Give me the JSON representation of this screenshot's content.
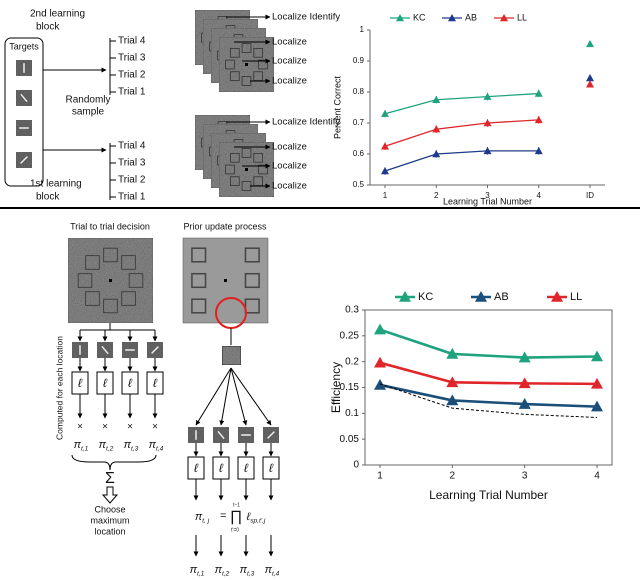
{
  "top_diagram": {
    "targets": "Targets",
    "block2": [
      "2nd learning",
      "block"
    ],
    "block1": [
      "1st learning",
      "block"
    ],
    "randomly_sample": [
      "Randomly",
      "sample"
    ],
    "block2_trials": [
      "Trial 4",
      "Trial 3",
      "Trial 2",
      "Trial 1"
    ],
    "block2_actions": [
      "Localize Identify",
      "Localize",
      "Localize",
      "Localize"
    ],
    "block1_trials": [
      "Trial 4",
      "Trial 3",
      "Trial 2",
      "Trial 1"
    ],
    "block1_actions": [
      "Localize Identify",
      "Localize",
      "Localize",
      "Localize"
    ]
  },
  "bottom_diagram": {
    "left_title": "Trial to trial decision",
    "right_title": "Prior update process",
    "computed": "Computed for each location",
    "ell": "ℓ",
    "times": "×",
    "pi": "π",
    "pi_subs": [
      "t,1",
      "t,2",
      "t,3",
      "t,4"
    ],
    "sum": "Σ",
    "choose": [
      "Choose",
      "maximum",
      "location"
    ],
    "formula": {
      "lhs_sub": "t, j",
      "eq": "=",
      "prod": "∏",
      "upper": "t−1",
      "lower": "t'=0",
      "rhs_sub": "sp,t',j"
    }
  },
  "chart_data": [
    {
      "type": "line",
      "xlabel": "Learning Trial Number",
      "ylabel": "Percent Correct",
      "categories": [
        "1",
        "2",
        "3",
        "4",
        "ID"
      ],
      "joined_points": 4,
      "legend": "top",
      "frame": false,
      "ylim": [
        0.5,
        1
      ],
      "yticks": [
        0.5,
        0.6,
        0.7,
        0.8,
        0.9,
        1
      ],
      "series": [
        {
          "name": "KC",
          "color": "#1fa37f",
          "values": [
            0.73,
            0.775,
            0.785,
            0.795,
            0.955
          ],
          "errors": [
            0.012,
            0.012,
            0.012,
            0.012,
            0.008
          ]
        },
        {
          "name": "AB",
          "color": "#1f3a8a",
          "values": [
            0.545,
            0.6,
            0.61,
            0.61,
            0.845
          ],
          "errors": [
            0.012,
            0.012,
            0.012,
            0.012,
            0.01
          ]
        },
        {
          "name": "LL",
          "color": "#e0262a",
          "values": [
            0.625,
            0.68,
            0.7,
            0.71,
            0.825
          ],
          "errors": [
            0.012,
            0.012,
            0.012,
            0.012,
            0.01
          ]
        }
      ]
    },
    {
      "type": "line",
      "xlabel": "Learning Trial Number",
      "ylabel": "Efficiency",
      "categories": [
        "1",
        "2",
        "3",
        "4"
      ],
      "legend": "top",
      "frame": true,
      "ylim": [
        0,
        0.3
      ],
      "yticks": [
        0,
        0.05,
        0.1,
        0.15,
        0.2,
        0.25,
        0.3
      ],
      "series": [
        {
          "name": "KC",
          "color": "#1fa37f",
          "values": [
            0.262,
            0.215,
            0.208,
            0.21
          ]
        },
        {
          "name": "AB",
          "color": "#1a4f7a",
          "values": [
            0.155,
            0.125,
            0.118,
            0.113
          ]
        },
        {
          "name": "LL",
          "color": "#e0262a",
          "values": [
            0.198,
            0.16,
            0.158,
            0.157
          ]
        },
        {
          "color": "#000000",
          "dashed": true,
          "values": [
            0.157,
            0.11,
            0.098,
            0.092
          ]
        }
      ]
    }
  ]
}
